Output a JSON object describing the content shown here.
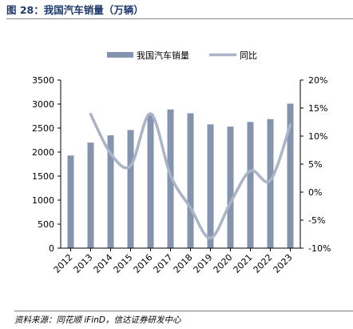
{
  "figure": {
    "title": "图 28：我国汽车销量（万辆）",
    "source": "资料来源：同花顺 iFinD，信达证券研发中心"
  },
  "colors": {
    "bar": "#8494ae",
    "line": "#aab4c6",
    "title": "#1f3a6e"
  },
  "chart_data": {
    "type": "bar",
    "categories": [
      "2012",
      "2013",
      "2014",
      "2015",
      "2016",
      "2017",
      "2018",
      "2019",
      "2020",
      "2021",
      "2022",
      "2023"
    ],
    "series": [
      {
        "name": "我国汽车销量",
        "type": "bar",
        "axis": "left",
        "values": [
          1930,
          2198,
          2349,
          2460,
          2803,
          2888,
          2808,
          2577,
          2531,
          2628,
          2686,
          3009
        ]
      },
      {
        "name": "同比",
        "type": "line",
        "axis": "right",
        "values": [
          null,
          13.9,
          6.9,
          4.7,
          14.0,
          3.0,
          -2.8,
          -8.2,
          -1.9,
          3.8,
          2.1,
          12.0
        ]
      }
    ],
    "left_axis": {
      "ylim": [
        0,
        3500
      ],
      "ticks": [
        "0",
        "500",
        "1000",
        "1500",
        "2000",
        "2500",
        "3000",
        "3500"
      ]
    },
    "right_axis": {
      "ylim": [
        -10,
        20
      ],
      "ticks": [
        "-10%",
        "-5%",
        "0%",
        "5%",
        "10%",
        "15%",
        "20%"
      ]
    },
    "legend_position": "top-center",
    "grid": false
  }
}
